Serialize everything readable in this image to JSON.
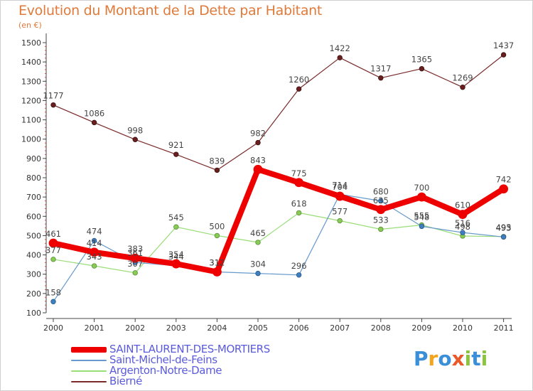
{
  "title": "Evolution du Montant de la Dette par Habitant",
  "subtitle": "(en €)",
  "chart_data": {
    "type": "line",
    "x": [
      "2000",
      "2001",
      "2002",
      "2003",
      "2004",
      "2005",
      "2006",
      "2007",
      "2008",
      "2009",
      "2010",
      "2011"
    ],
    "yticks": [
      100,
      200,
      300,
      400,
      500,
      600,
      700,
      800,
      900,
      1000,
      1100,
      1200,
      1300,
      1400,
      1500
    ],
    "ylim": [
      100,
      1500
    ],
    "grid": false,
    "legend_position": "bottom-left",
    "series": [
      {
        "name": "SAINT-LAURENT-DES-MORTIERS",
        "color": "#ee0000",
        "values": [
          461,
          414,
          383,
          354,
          312,
          843,
          775,
          704,
          635,
          700,
          610,
          742
        ]
      },
      {
        "name": "Saint-Michel-de-Feins",
        "color": "#6699cc",
        "values": [
          158,
          474,
          361,
          344,
          312,
          304,
          296,
          714,
          680,
          548,
          516,
          493
        ]
      },
      {
        "name": "Argenton-Notre-Dame",
        "color": "#99dd77",
        "values": [
          377,
          343,
          307,
          545,
          500,
          465,
          618,
          577,
          533,
          555,
          498,
          495
        ]
      },
      {
        "name": "Bierné",
        "color": "#7a2a2a",
        "values": [
          1177,
          1086,
          998,
          921,
          839,
          982,
          1260,
          1422,
          1317,
          1365,
          1269,
          1437
        ]
      }
    ]
  },
  "logo": {
    "text": "Proxiti",
    "letters": [
      "P",
      "r",
      "o",
      "x",
      "i",
      "t",
      "i"
    ],
    "colors": [
      "#3a8fd9",
      "#f2a51d",
      "#3a8fd9",
      "#e85a2a",
      "#8cc43f",
      "#3a8fd9",
      "#8cc43f"
    ]
  }
}
